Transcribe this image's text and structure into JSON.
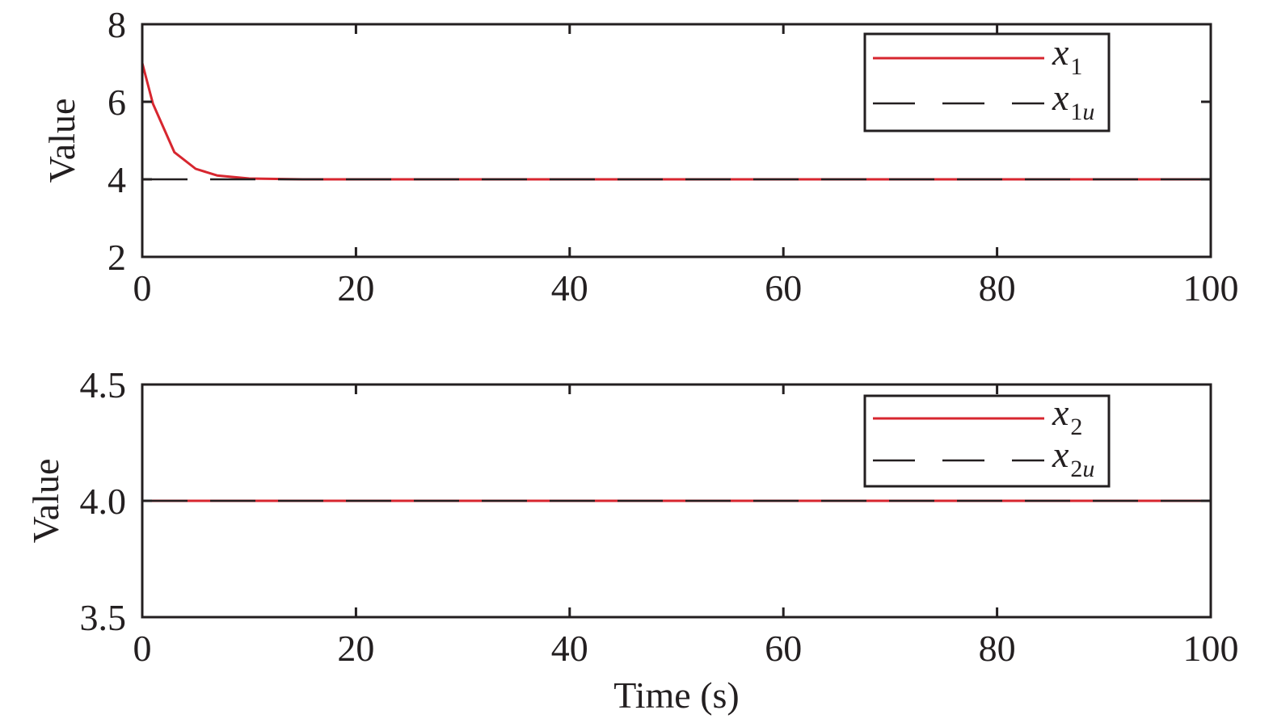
{
  "chart_data": [
    {
      "type": "line",
      "xlabel": "",
      "ylabel": "Value",
      "xlim": [
        0,
        100
      ],
      "ylim": [
        2,
        8
      ],
      "xticks": [
        0,
        20,
        40,
        60,
        80,
        100
      ],
      "yticks": [
        2,
        4,
        6,
        8
      ],
      "xtick_labels": [
        "0",
        "20",
        "40",
        "60",
        "80",
        "100"
      ],
      "ytick_labels": [
        "2",
        "4",
        "6",
        "8"
      ],
      "grid": false,
      "legend_position": "top-right",
      "series": [
        {
          "name": "x1",
          "name_base": "x",
          "name_sub": "1",
          "color": "#d7262f",
          "style": "solid",
          "x": [
            0,
            1,
            3,
            5,
            7,
            10,
            15,
            20,
            100
          ],
          "y": [
            7.0,
            5.95,
            4.7,
            4.27,
            4.1,
            4.02,
            4.0,
            4.0,
            4.0
          ]
        },
        {
          "name": "x1u",
          "name_base": "x",
          "name_sub": "1u",
          "color": "#231f20",
          "style": "dashed",
          "x": [
            0,
            100
          ],
          "y": [
            4.0,
            4.0
          ]
        }
      ]
    },
    {
      "type": "line",
      "xlabel": "Time (s)",
      "ylabel": "Value",
      "xlim": [
        0,
        100
      ],
      "ylim": [
        3.5,
        4.5
      ],
      "xticks": [
        0,
        20,
        40,
        60,
        80,
        100
      ],
      "yticks": [
        3.5,
        4.0,
        4.5
      ],
      "xtick_labels": [
        "0",
        "20",
        "40",
        "60",
        "80",
        "100"
      ],
      "ytick_labels": [
        "3.5",
        "4.0",
        "4.5"
      ],
      "grid": false,
      "legend_position": "top-right",
      "series": [
        {
          "name": "x2",
          "name_base": "x",
          "name_sub": "2",
          "color": "#d7262f",
          "style": "solid",
          "x": [
            0,
            100
          ],
          "y": [
            4.0,
            4.0
          ]
        },
        {
          "name": "x2u",
          "name_base": "x",
          "name_sub": "2u",
          "color": "#231f20",
          "style": "dashed",
          "x": [
            0,
            100
          ],
          "y": [
            4.0,
            4.0
          ]
        }
      ]
    }
  ]
}
